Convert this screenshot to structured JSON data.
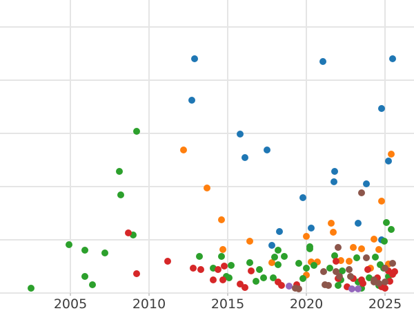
{
  "figure": {
    "background": "#ffffff",
    "grid_color": "#e5e5e5",
    "tick_label_color": "#3d3d3d"
  },
  "chart_data": {
    "type": "scatter",
    "title": "",
    "xlabel": "",
    "ylabel": "",
    "grid": true,
    "legend": "none",
    "x_ticks": [
      "2005",
      "2010",
      "2015",
      "2020",
      "2025"
    ],
    "x_tick_years": [
      2005,
      2010,
      2015,
      2020,
      2025
    ],
    "xlim": [
      2000.5,
      2026.8
    ],
    "ylim": [
      0,
      5.5
    ],
    "y_gridline_units": [
      0,
      1,
      2,
      3,
      4,
      5
    ],
    "y_tick_labels_visible": false,
    "series": [
      {
        "name": "blue",
        "color": "#1f77b4",
        "points": [
          [
            2012.9,
            4.4
          ],
          [
            2021.05,
            4.35
          ],
          [
            2025.5,
            4.4
          ],
          [
            2012.7,
            3.62
          ],
          [
            2024.8,
            3.47
          ],
          [
            2015.8,
            2.99
          ],
          [
            2017.5,
            2.69
          ],
          [
            2016.1,
            2.55
          ],
          [
            2025.2,
            2.48
          ],
          [
            2021.8,
            2.29
          ],
          [
            2021.75,
            2.09
          ],
          [
            2023.8,
            2.05
          ],
          [
            2019.8,
            1.79
          ],
          [
            2023.3,
            1.31
          ],
          [
            2020.3,
            1.22
          ],
          [
            2018.3,
            1.16
          ],
          [
            2024.8,
            1.0
          ],
          [
            2017.8,
            0.9
          ]
        ]
      },
      {
        "name": "orange",
        "color": "#ff7f0e",
        "points": [
          [
            2012.2,
            2.69
          ],
          [
            2025.4,
            2.61
          ],
          [
            2013.7,
            1.97
          ],
          [
            2024.8,
            1.73
          ],
          [
            2014.6,
            1.38
          ],
          [
            2021.6,
            1.31
          ],
          [
            2021.7,
            1.14
          ],
          [
            2020.0,
            1.06
          ],
          [
            2024.3,
            1.01
          ],
          [
            2016.4,
            0.97
          ],
          [
            2023.0,
            0.86
          ],
          [
            2023.5,
            0.83
          ],
          [
            2024.6,
            0.82
          ],
          [
            2014.7,
            0.82
          ],
          [
            2022.2,
            0.61
          ],
          [
            2022.7,
            0.6
          ],
          [
            2020.3,
            0.58
          ],
          [
            2020.7,
            0.58
          ],
          [
            2017.8,
            0.57
          ],
          [
            2025.2,
            0.55
          ],
          [
            2024.1,
            0.47
          ],
          [
            2020.0,
            0.34
          ]
        ]
      },
      {
        "name": "green",
        "color": "#2ca02c",
        "points": [
          [
            2009.2,
            3.04
          ],
          [
            2008.1,
            2.29
          ],
          [
            2008.2,
            1.84
          ],
          [
            2025.1,
            1.32
          ],
          [
            2025.4,
            1.19
          ],
          [
            2009.0,
            1.09
          ],
          [
            2024.96,
            0.97
          ],
          [
            2004.9,
            0.91
          ],
          [
            2020.2,
            0.87
          ],
          [
            2020.2,
            0.83
          ],
          [
            2005.9,
            0.81
          ],
          [
            2018.2,
            0.81
          ],
          [
            2007.2,
            0.75
          ],
          [
            2021.8,
            0.7
          ],
          [
            2013.2,
            0.69
          ],
          [
            2014.6,
            0.69
          ],
          [
            2018.6,
            0.69
          ],
          [
            2018.0,
            0.68
          ],
          [
            2024.4,
            0.68
          ],
          [
            2023.2,
            0.66
          ],
          [
            2016.4,
            0.57
          ],
          [
            2019.5,
            0.56
          ],
          [
            2018.2,
            0.53
          ],
          [
            2024.7,
            0.53
          ],
          [
            2015.2,
            0.52
          ],
          [
            2020.5,
            0.52
          ],
          [
            2014.1,
            0.47
          ],
          [
            2020.0,
            0.47
          ],
          [
            2021.5,
            0.47
          ],
          [
            2024.9,
            0.47
          ],
          [
            2017.0,
            0.44
          ],
          [
            2022.3,
            0.42
          ],
          [
            2005.9,
            0.31
          ],
          [
            2014.9,
            0.31
          ],
          [
            2025.2,
            0.31
          ],
          [
            2015.1,
            0.29
          ],
          [
            2017.3,
            0.29
          ],
          [
            2017.9,
            0.29
          ],
          [
            2024.0,
            0.29
          ],
          [
            2019.8,
            0.27
          ],
          [
            2022.2,
            0.25
          ],
          [
            2016.8,
            0.22
          ],
          [
            2023.3,
            0.21
          ],
          [
            2006.4,
            0.16
          ],
          [
            2024.6,
            0.14
          ],
          [
            2022.0,
            0.14
          ],
          [
            2002.5,
            0.09
          ],
          [
            2023.5,
            0.09
          ]
        ]
      },
      {
        "name": "red",
        "color": "#d62728",
        "points": [
          [
            2008.7,
            1.13
          ],
          [
            2011.2,
            0.6
          ],
          [
            2021.9,
            0.6
          ],
          [
            2014.8,
            0.51
          ],
          [
            2012.8,
            0.47
          ],
          [
            2013.3,
            0.44
          ],
          [
            2014.4,
            0.44
          ],
          [
            2023.9,
            0.44
          ],
          [
            2016.5,
            0.42
          ],
          [
            2025.2,
            0.42
          ],
          [
            2025.6,
            0.4
          ],
          [
            2009.2,
            0.36
          ],
          [
            2025.5,
            0.35
          ],
          [
            2024.5,
            0.29
          ],
          [
            2022.0,
            0.27
          ],
          [
            2023.0,
            0.27
          ],
          [
            2014.1,
            0.25
          ],
          [
            2014.7,
            0.25
          ],
          [
            2023.5,
            0.25
          ],
          [
            2025.3,
            0.22
          ],
          [
            2018.2,
            0.21
          ],
          [
            2023.6,
            0.18
          ],
          [
            2015.8,
            0.17
          ],
          [
            2019.4,
            0.16
          ],
          [
            2018.4,
            0.14
          ],
          [
            2022.6,
            0.12
          ],
          [
            2024.8,
            0.12
          ],
          [
            2016.1,
            0.1
          ],
          [
            2025.0,
            0.09
          ]
        ]
      },
      {
        "name": "purple",
        "color": "#9467bd",
        "points": [
          [
            2018.9,
            0.13
          ],
          [
            2022.9,
            0.08
          ],
          [
            2023.3,
            0.08
          ]
        ]
      },
      {
        "name": "brown",
        "color": "#8c564b",
        "points": [
          [
            2023.5,
            1.88
          ],
          [
            2022.0,
            0.86
          ],
          [
            2023.8,
            0.66
          ],
          [
            2025.5,
            0.56
          ],
          [
            2025.0,
            0.47
          ],
          [
            2022.7,
            0.44
          ],
          [
            2021.1,
            0.4
          ],
          [
            2021.9,
            0.4
          ],
          [
            2022.1,
            0.31
          ],
          [
            2022.8,
            0.31
          ],
          [
            2024.3,
            0.25
          ],
          [
            2024.3,
            0.21
          ],
          [
            2025.0,
            0.21
          ],
          [
            2024.6,
            0.18
          ],
          [
            2021.2,
            0.16
          ],
          [
            2021.4,
            0.14
          ],
          [
            2019.3,
            0.09
          ],
          [
            2019.5,
            0.08
          ]
        ]
      }
    ]
  }
}
